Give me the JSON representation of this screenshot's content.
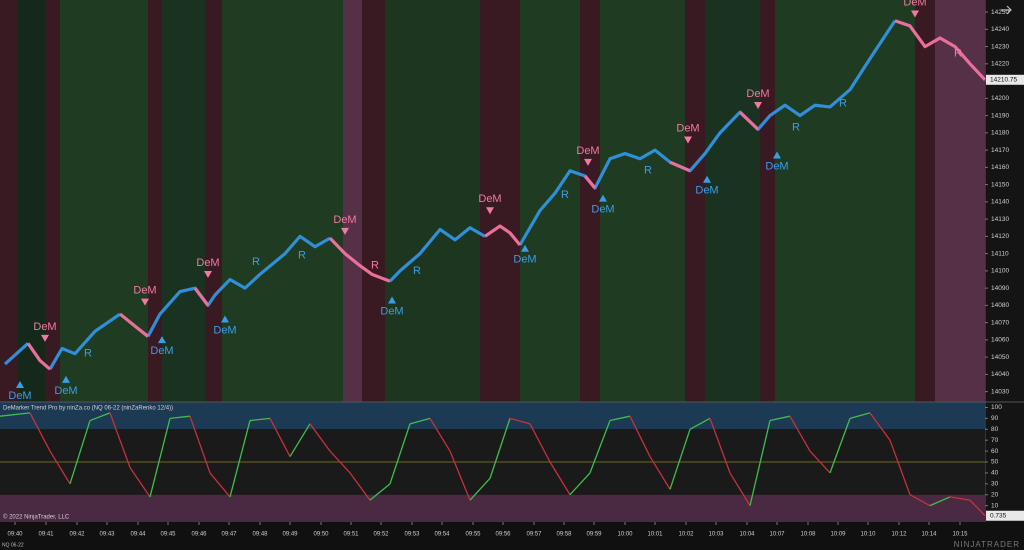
{
  "chart_data": [
    {
      "type": "line",
      "xlim": [
        0,
        98.5
      ],
      "ylim": [
        14024,
        14257
      ],
      "yticks": [
        14030,
        14040,
        14050,
        14060,
        14070,
        14080,
        14090,
        14100,
        14110,
        14120,
        14130,
        14140,
        14150,
        14160,
        14170,
        14180,
        14190,
        14200,
        14210,
        14220,
        14230,
        14240,
        14250
      ],
      "last_price": 14210.75,
      "bands": [
        {
          "from": 0,
          "to": 1.8,
          "color": "#3a1a22"
        },
        {
          "from": 1.8,
          "to": 4.5,
          "color": "#15291a"
        },
        {
          "from": 4.5,
          "to": 6.0,
          "color": "#3a1a22"
        },
        {
          "from": 6.0,
          "to": 14.8,
          "color": "#1f3b22"
        },
        {
          "from": 14.8,
          "to": 16.2,
          "color": "#3a1a22"
        },
        {
          "from": 16.2,
          "to": 20.5,
          "color": "#1a3320"
        },
        {
          "from": 20.5,
          "to": 22.2,
          "color": "#3a1a22"
        },
        {
          "from": 22.2,
          "to": 34.3,
          "color": "#1f3b22"
        },
        {
          "from": 34.3,
          "to": 36.2,
          "color": "#553046"
        },
        {
          "from": 36.2,
          "to": 38.5,
          "color": "#3a1a22"
        },
        {
          "from": 38.5,
          "to": 48.0,
          "color": "#1c3620"
        },
        {
          "from": 48.0,
          "to": 52.0,
          "color": "#3a1a22"
        },
        {
          "from": 52.0,
          "to": 58.0,
          "color": "#1f3b22"
        },
        {
          "from": 58.0,
          "to": 60.0,
          "color": "#3a1a22"
        },
        {
          "from": 60.0,
          "to": 68.5,
          "color": "#1f3b22"
        },
        {
          "from": 68.5,
          "to": 70.5,
          "color": "#3a1a22"
        },
        {
          "from": 70.5,
          "to": 76.0,
          "color": "#1a3320"
        },
        {
          "from": 76.0,
          "to": 77.5,
          "color": "#3a1a22"
        },
        {
          "from": 77.5,
          "to": 91.5,
          "color": "#1f3b22"
        },
        {
          "from": 91.5,
          "to": 93.5,
          "color": "#3a1a22"
        },
        {
          "from": 93.5,
          "to": 98.5,
          "color": "#553046"
        }
      ],
      "x": [
        0.5,
        2.8,
        4.0,
        5.0,
        6.2,
        7.5,
        9.5,
        12.0,
        13.5,
        14.8,
        16.0,
        18.0,
        19.5,
        20.8,
        21.5,
        23.0,
        24.5,
        26.0,
        28.5,
        30.0,
        31.5,
        33.0,
        34.5,
        36.0,
        37.2,
        39.0,
        40.0,
        42.0,
        44.0,
        45.5,
        47.0,
        48.5,
        50.0,
        51.0,
        52.0,
        54.0,
        55.5,
        57.0,
        58.5,
        59.5,
        61.0,
        62.5,
        64.0,
        65.5,
        67.0,
        69.0,
        70.5,
        72.0,
        74.0,
        75.8,
        77.0,
        78.5,
        80.0,
        81.5,
        83.0,
        85.0,
        87.0,
        89.5,
        91.0,
        92.5,
        94.0,
        95.5,
        97.0,
        98.5
      ],
      "series": [
        {
          "color": "#2f8fd8",
          "values": [
            14046,
            14058,
            null,
            14043,
            14055,
            14052,
            14065,
            14075,
            null,
            14062,
            14075,
            14088,
            14090,
            14080,
            14086,
            14095,
            14090,
            14098,
            14110,
            14120,
            14114,
            14119,
            null,
            null,
            null,
            14094,
            14100,
            14110,
            14124,
            14118,
            14125,
            14120,
            null,
            null,
            14115,
            14135,
            14145,
            14158,
            14155,
            14148,
            14165,
            14168,
            14165,
            14170,
            14163,
            14158,
            14168,
            14180,
            14192,
            14182,
            14190,
            14196,
            14190,
            14196,
            14195,
            14205,
            14223,
            14245,
            null,
            null,
            null,
            null,
            null,
            null
          ]
        },
        {
          "color": "#e8709a",
          "values": [
            null,
            14058,
            14048,
            14043,
            null,
            null,
            null,
            14075,
            14068,
            14062,
            null,
            null,
            14090,
            14080,
            null,
            null,
            null,
            null,
            null,
            null,
            null,
            14119,
            14110,
            14103,
            14098,
            14094,
            null,
            null,
            null,
            null,
            null,
            14120,
            14126,
            14122,
            14115,
            null,
            null,
            null,
            14155,
            14148,
            null,
            null,
            null,
            null,
            14163,
            14158,
            null,
            null,
            14192,
            14182,
            null,
            null,
            null,
            null,
            null,
            null,
            null,
            14245,
            14242,
            14230,
            14235,
            14230,
            14220,
            14210.75
          ]
        }
      ],
      "signals": [
        {
          "text": "DeM",
          "kind": "sell",
          "x": 4.5,
          "y": 14060
        },
        {
          "text": "DeM",
          "kind": "sell",
          "x": 14.5,
          "y": 14081
        },
        {
          "text": "DeM",
          "kind": "sell",
          "x": 20.8,
          "y": 14097
        },
        {
          "text": "DeM",
          "kind": "sell",
          "x": 34.5,
          "y": 14122
        },
        {
          "text": "DeM",
          "kind": "sell",
          "x": 49.0,
          "y": 14134
        },
        {
          "text": "DeM",
          "kind": "sell",
          "x": 58.8,
          "y": 14162
        },
        {
          "text": "DeM",
          "kind": "sell",
          "x": 68.8,
          "y": 14175
        },
        {
          "text": "DeM",
          "kind": "sell",
          "x": 75.8,
          "y": 14195
        },
        {
          "text": "DeM",
          "kind": "sell",
          "x": 91.5,
          "y": 14248
        },
        {
          "text": "DeM",
          "kind": "buy",
          "x": 2.0,
          "y": 14035
        },
        {
          "text": "DeM",
          "kind": "buy",
          "x": 6.6,
          "y": 14038
        },
        {
          "text": "DeM",
          "kind": "buy",
          "x": 16.2,
          "y": 14061
        },
        {
          "text": "DeM",
          "kind": "buy",
          "x": 22.5,
          "y": 14073
        },
        {
          "text": "DeM",
          "kind": "buy",
          "x": 39.2,
          "y": 14084
        },
        {
          "text": "DeM",
          "kind": "buy",
          "x": 52.5,
          "y": 14114
        },
        {
          "text": "DeM",
          "kind": "buy",
          "x": 60.3,
          "y": 14143
        },
        {
          "text": "DeM",
          "kind": "buy",
          "x": 70.7,
          "y": 14154
        },
        {
          "text": "DeM",
          "kind": "buy",
          "x": 77.7,
          "y": 14168
        }
      ],
      "annotations": [
        {
          "text": "R",
          "kind": "buy",
          "x": 8.8,
          "y": 14052
        },
        {
          "text": "R",
          "kind": "buy",
          "x": 25.6,
          "y": 14105
        },
        {
          "text": "R",
          "kind": "buy",
          "x": 30.2,
          "y": 14109
        },
        {
          "text": "R",
          "kind": "buy",
          "x": 41.7,
          "y": 14100
        },
        {
          "text": "R",
          "kind": "buy",
          "x": 56.5,
          "y": 14144
        },
        {
          "text": "R",
          "kind": "buy",
          "x": 64.8,
          "y": 14158
        },
        {
          "text": "R",
          "kind": "buy",
          "x": 79.6,
          "y": 14183
        },
        {
          "text": "R",
          "kind": "buy",
          "x": 84.3,
          "y": 14197
        },
        {
          "text": "R",
          "kind": "sell",
          "x": 37.5,
          "y": 14103
        },
        {
          "text": "R",
          "kind": "sell",
          "x": 95.8,
          "y": 14226
        }
      ]
    },
    {
      "type": "line",
      "title": "DeMarker Trend Pro by ninZa.co (NQ 06-22 (ninZaRenko 12/4))",
      "copyright": "© 2022 NinjaTrader, LLC",
      "xlim": [
        0,
        98.5
      ],
      "ylim": [
        -5,
        105
      ],
      "yticks": [
        10,
        20,
        30,
        40,
        50,
        60,
        70,
        80,
        90,
        100
      ],
      "upper_level": 80,
      "lower_level": 20,
      "mid_level": 50,
      "last_value": 0.735,
      "rising_color": "#3fbf4a",
      "falling_color": "#c8303a",
      "x": [
        0,
        3,
        5,
        7,
        9,
        11,
        13,
        15,
        17,
        19,
        21,
        23,
        25,
        27,
        29,
        31,
        33,
        35,
        37,
        39,
        41,
        43,
        45,
        47,
        49,
        51,
        53,
        55,
        57,
        59,
        61,
        63,
        65,
        67,
        69,
        71,
        73,
        75,
        77,
        79,
        81,
        83,
        85,
        87,
        89,
        91,
        93,
        95,
        97,
        98.5
      ],
      "values": [
        92,
        95,
        60,
        30,
        88,
        95,
        45,
        18,
        90,
        92,
        40,
        18,
        88,
        90,
        55,
        85,
        60,
        40,
        15,
        30,
        85,
        90,
        60,
        15,
        35,
        90,
        85,
        50,
        20,
        40,
        88,
        92,
        55,
        25,
        80,
        90,
        40,
        10,
        88,
        92,
        60,
        40,
        90,
        95,
        70,
        20,
        10,
        18,
        15,
        0.735
      ],
      "xticks": [
        {
          "value": 1.5,
          "label": "09:40"
        },
        {
          "value": 4.6,
          "label": "09:41"
        },
        {
          "value": 7.7,
          "label": "09:42"
        },
        {
          "value": 10.7,
          "label": "09:43"
        },
        {
          "value": 13.8,
          "label": "09:44"
        },
        {
          "value": 16.8,
          "label": "09:45"
        },
        {
          "value": 19.9,
          "label": "09:46"
        },
        {
          "value": 22.9,
          "label": "09:47"
        },
        {
          "value": 26.0,
          "label": "09:48"
        },
        {
          "value": 29.0,
          "label": "09:49"
        },
        {
          "value": 32.1,
          "label": "09:50"
        },
        {
          "value": 35.1,
          "label": "09:51"
        },
        {
          "value": 38.1,
          "label": "09:52"
        },
        {
          "value": 41.2,
          "label": "09:53"
        },
        {
          "value": 44.2,
          "label": "09:54"
        },
        {
          "value": 47.3,
          "label": "09:55"
        },
        {
          "value": 50.3,
          "label": "09:56"
        },
        {
          "value": 53.4,
          "label": "09:57"
        },
        {
          "value": 56.4,
          "label": "09:58"
        },
        {
          "value": 59.4,
          "label": "09:59"
        },
        {
          "value": 62.5,
          "label": "10:00"
        },
        {
          "value": 65.5,
          "label": "10:01"
        },
        {
          "value": 68.6,
          "label": "10:02"
        },
        {
          "value": 71.6,
          "label": "10:03"
        },
        {
          "value": 74.7,
          "label": "10:04"
        },
        {
          "value": 77.7,
          "label": "10:07"
        },
        {
          "value": 80.8,
          "label": "10:08"
        },
        {
          "value": 83.8,
          "label": "10:09"
        },
        {
          "value": 86.8,
          "label": "10:10"
        },
        {
          "value": 89.9,
          "label": "10:12"
        },
        {
          "value": 92.9,
          "label": "10:14"
        },
        {
          "value": 96.0,
          "label": "10:15"
        }
      ],
      "instrument": "NQ 06-22",
      "watermark": "NINJATRADER"
    }
  ]
}
